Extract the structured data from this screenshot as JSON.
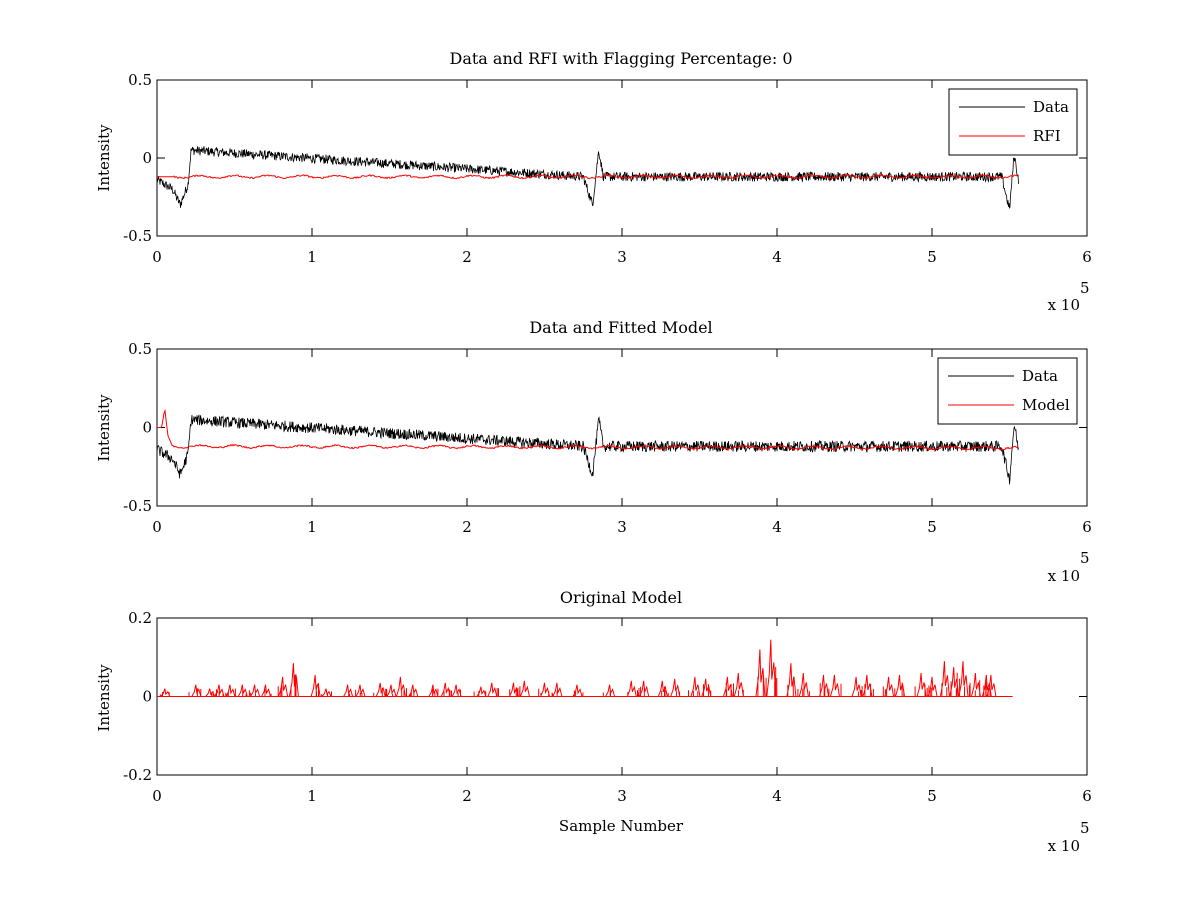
{
  "chart_data": [
    {
      "type": "line",
      "title": "Data and RFI with Flagging Percentage: 0",
      "xlabel": "",
      "ylabel": "Intensity",
      "xlim": [
        0,
        600000
      ],
      "ylim": [
        -0.5,
        0.5
      ],
      "x_ticks": [
        "0",
        "1",
        "2",
        "3",
        "4",
        "5",
        "6"
      ],
      "y_ticks": [
        "-0.5",
        "0",
        "0.5"
      ],
      "x_exponent_label": "x 10",
      "x_exponent": "5",
      "legend": {
        "position": "top-right",
        "entries": [
          "Data",
          "RFI"
        ]
      },
      "grid": false,
      "series": [
        {
          "name": "Data",
          "color": "#000000",
          "baseline": -0.12,
          "noise_band": 0.03,
          "x": [
            0,
            10000,
            15000,
            20000,
            22000,
            275000,
            281000,
            285000,
            288000,
            545000,
            550000,
            553000,
            556000
          ],
          "y": [
            -0.14,
            -0.2,
            -0.3,
            -0.17,
            0.05,
            -0.12,
            -0.3,
            0.05,
            -0.12,
            -0.12,
            -0.33,
            0.02,
            -0.15
          ]
        },
        {
          "name": "RFI",
          "color": "#ff0000",
          "baseline": -0.12,
          "x": [
            0,
            556000
          ],
          "y": [
            -0.12,
            -0.12
          ]
        }
      ]
    },
    {
      "type": "line",
      "title": "Data and Fitted Model",
      "xlabel": "",
      "ylabel": "Intensity",
      "xlim": [
        0,
        600000
      ],
      "ylim": [
        -0.5,
        0.5
      ],
      "x_ticks": [
        "0",
        "1",
        "2",
        "3",
        "4",
        "5",
        "6"
      ],
      "y_ticks": [
        "-0.5",
        "0",
        "0.5"
      ],
      "x_exponent_label": "x 10",
      "x_exponent": "5",
      "legend": {
        "position": "top-right",
        "entries": [
          "Data",
          "Model"
        ]
      },
      "grid": false,
      "series": [
        {
          "name": "Data",
          "color": "#000000",
          "baseline": -0.12,
          "noise_band": 0.035,
          "x": [
            0,
            10000,
            15000,
            20000,
            22000,
            275000,
            281000,
            285000,
            288000,
            545000,
            550000,
            553000,
            556000
          ],
          "y": [
            -0.14,
            -0.2,
            -0.3,
            -0.17,
            0.05,
            -0.12,
            -0.3,
            0.05,
            -0.12,
            -0.12,
            -0.33,
            0.02,
            -0.15
          ]
        },
        {
          "name": "Model",
          "color": "#ff0000",
          "baseline": -0.13,
          "x": [
            0,
            3000,
            5000,
            7000,
            10000,
            556000
          ],
          "y": [
            0,
            0,
            0.12,
            -0.05,
            -0.12,
            -0.13
          ]
        }
      ]
    },
    {
      "type": "line",
      "title": "Original Model",
      "xlabel": "Sample Number",
      "ylabel": "Intensity",
      "xlim": [
        0,
        600000
      ],
      "ylim": [
        -0.2,
        0.2
      ],
      "x_ticks": [
        "0",
        "1",
        "2",
        "3",
        "4",
        "5",
        "6"
      ],
      "y_ticks": [
        "-0.2",
        "0",
        "0.2"
      ],
      "x_exponent_label": "x 10",
      "x_exponent": "5",
      "grid": false,
      "series": [
        {
          "name": "",
          "color": "#ff0000",
          "baseline": 0,
          "x": [
            5000,
            25000,
            34000,
            40000,
            47000,
            55000,
            63000,
            70000,
            81000,
            88000,
            102000,
            109000,
            123000,
            131000,
            144000,
            151000,
            157000,
            165000,
            178000,
            186000,
            193000,
            209000,
            216000,
            230000,
            237000,
            250000,
            258000,
            271000,
            292000,
            306000,
            314000,
            326000,
            334000,
            347000,
            354000,
            368000,
            375000,
            389000,
            396000,
            409000,
            417000,
            430000,
            437000,
            451000,
            458000,
            472000,
            479000,
            493000,
            500000,
            508000,
            514000,
            520000,
            528000,
            535000,
            538000
          ],
          "y": [
            0.02,
            0.03,
            0.02,
            0.03,
            0.03,
            0.03,
            0.03,
            0.03,
            0.05,
            0.085,
            0.055,
            0.02,
            0.03,
            0.03,
            0.035,
            0.03,
            0.05,
            0.03,
            0.03,
            0.035,
            0.03,
            0.025,
            0.035,
            0.035,
            0.04,
            0.035,
            0.035,
            0.03,
            0.03,
            0.04,
            0.04,
            0.04,
            0.045,
            0.05,
            0.045,
            0.05,
            0.06,
            0.12,
            0.145,
            0.085,
            0.06,
            0.055,
            0.055,
            0.05,
            0.055,
            0.05,
            0.055,
            0.06,
            0.05,
            0.09,
            0.075,
            0.09,
            0.06,
            0.055,
            0.055
          ]
        }
      ]
    }
  ]
}
